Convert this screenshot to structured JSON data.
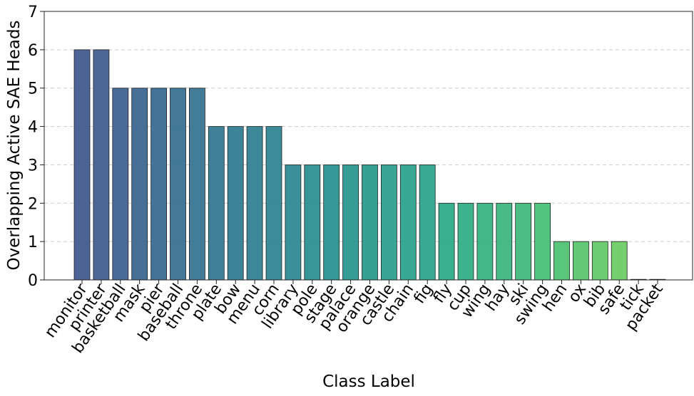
{
  "chart_data": {
    "type": "bar",
    "xlabel": "Class Label",
    "ylabel": "Overlapping Active SAE Heads",
    "ylim": [
      0,
      7
    ],
    "yticks": [
      0,
      1,
      2,
      3,
      4,
      5,
      6,
      7
    ],
    "grid": "horizontal dashed",
    "categories": [
      "monitor",
      "printer",
      "basketball",
      "mask",
      "pier",
      "baseball",
      "throne",
      "plate",
      "bow",
      "menu",
      "corn",
      "library",
      "pole",
      "stage",
      "palace",
      "orange",
      "castle",
      "chain",
      "fig",
      "fly",
      "cup",
      "wing",
      "hay",
      "ski",
      "swing",
      "hen",
      "ox",
      "bib",
      "safe",
      "tick",
      "packet"
    ],
    "values": [
      6,
      6,
      5,
      5,
      5,
      5,
      5,
      4,
      4,
      4,
      4,
      3,
      3,
      3,
      3,
      3,
      3,
      3,
      3,
      2,
      2,
      2,
      2,
      2,
      2,
      1,
      1,
      1,
      1,
      0,
      0
    ],
    "colormap": "viridis (0.25 to 0.80)",
    "bar_edge_color": "#222222"
  }
}
